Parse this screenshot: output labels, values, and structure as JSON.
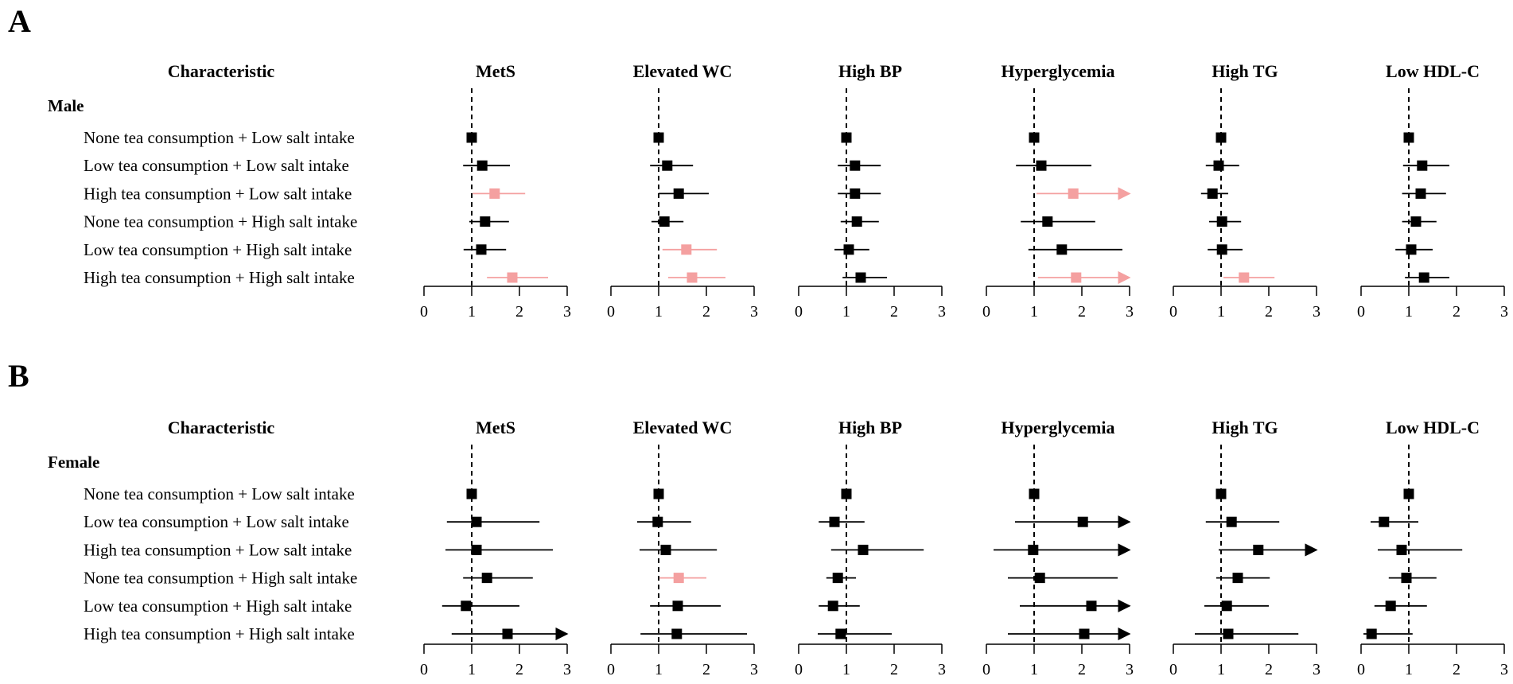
{
  "chart_data": {
    "type": "forest",
    "colors": {
      "significant": "#f4a0a0",
      "default": "#000000"
    },
    "columns": [
      "MetS",
      "Elevated WC",
      "High BP",
      "Hyperglycemia",
      "High TG",
      "Low HDL-C"
    ],
    "characteristic_header": "Characteristic",
    "rows": [
      "None tea consumption + Low salt intake",
      "Low tea consumption + Low salt intake",
      "High tea consumption + Low salt intake",
      "None tea consumption + High salt intake",
      "Low tea consumption + High salt intake",
      "High tea consumption + High salt intake"
    ],
    "xlim": [
      0,
      3
    ],
    "xticks": [
      0,
      1,
      2,
      3
    ],
    "reference_line": 1,
    "panels": [
      {
        "letter": "A",
        "group": "Male",
        "estimates": [
          [
            [
              1.0,
              1.0,
              1.0,
              0
            ],
            [
              1.0,
              1.0,
              1.0,
              0
            ],
            [
              1.0,
              1.0,
              1.0,
              0
            ],
            [
              1.0,
              1.0,
              1.0,
              0
            ],
            [
              1.0,
              1.0,
              1.0,
              0
            ],
            [
              1.0,
              1.0,
              1.0,
              0
            ]
          ],
          [
            [
              1.22,
              0.82,
              1.8,
              0
            ],
            [
              1.18,
              0.82,
              1.72,
              0
            ],
            [
              1.18,
              0.82,
              1.72,
              0
            ],
            [
              1.15,
              0.62,
              2.2,
              0
            ],
            [
              0.95,
              0.68,
              1.38,
              0
            ],
            [
              1.28,
              0.88,
              1.85,
              0
            ]
          ],
          [
            [
              1.48,
              1.02,
              2.12,
              1
            ],
            [
              1.42,
              1.0,
              2.05,
              0
            ],
            [
              1.18,
              0.82,
              1.72,
              0
            ],
            [
              1.82,
              1.05,
              3.0,
              1
            ],
            [
              0.82,
              0.58,
              1.15,
              0
            ],
            [
              1.25,
              0.86,
              1.78,
              0
            ]
          ],
          [
            [
              1.28,
              0.95,
              1.78,
              0
            ],
            [
              1.12,
              0.85,
              1.52,
              0
            ],
            [
              1.22,
              0.88,
              1.68,
              0
            ],
            [
              1.28,
              0.72,
              2.28,
              0
            ],
            [
              1.02,
              0.75,
              1.42,
              0
            ],
            [
              1.15,
              0.86,
              1.58,
              0
            ]
          ],
          [
            [
              1.2,
              0.83,
              1.72,
              0
            ],
            [
              1.58,
              1.08,
              2.22,
              1
            ],
            [
              1.05,
              0.75,
              1.48,
              0
            ],
            [
              1.58,
              0.88,
              2.85,
              0
            ],
            [
              1.02,
              0.72,
              1.45,
              0
            ],
            [
              1.05,
              0.72,
              1.5,
              0
            ]
          ],
          [
            [
              1.85,
              1.32,
              2.6,
              1
            ],
            [
              1.7,
              1.2,
              2.4,
              1
            ],
            [
              1.3,
              0.92,
              1.85,
              0
            ],
            [
              1.88,
              1.08,
              3.0,
              1
            ],
            [
              1.48,
              1.05,
              2.12,
              1
            ],
            [
              1.32,
              0.92,
              1.85,
              0
            ]
          ]
        ]
      },
      {
        "letter": "B",
        "group": "Female",
        "estimates": [
          [
            [
              1.0,
              1.0,
              1.0,
              0
            ],
            [
              1.0,
              1.0,
              1.0,
              0
            ],
            [
              1.0,
              1.0,
              1.0,
              0
            ],
            [
              1.0,
              1.0,
              1.0,
              0
            ],
            [
              1.0,
              1.0,
              1.0,
              0
            ],
            [
              1.0,
              1.0,
              1.0,
              0
            ]
          ],
          [
            [
              1.1,
              0.48,
              2.42,
              0
            ],
            [
              0.98,
              0.55,
              1.68,
              0
            ],
            [
              0.75,
              0.42,
              1.38,
              0
            ],
            [
              2.02,
              0.6,
              3.0,
              0
            ],
            [
              1.22,
              0.68,
              2.22,
              0
            ],
            [
              0.48,
              0.2,
              1.2,
              0
            ]
          ],
          [
            [
              1.1,
              0.45,
              2.7,
              0
            ],
            [
              1.15,
              0.6,
              2.22,
              0
            ],
            [
              1.35,
              0.68,
              2.62,
              0
            ],
            [
              0.98,
              0.15,
              3.0,
              0
            ],
            [
              1.78,
              0.95,
              3.0,
              0
            ],
            [
              0.85,
              0.35,
              2.12,
              0
            ]
          ],
          [
            [
              1.32,
              0.82,
              2.28,
              0
            ],
            [
              1.42,
              1.02,
              2.0,
              1
            ],
            [
              0.82,
              0.58,
              1.2,
              0
            ],
            [
              1.12,
              0.45,
              2.75,
              0
            ],
            [
              1.35,
              0.9,
              2.02,
              0
            ],
            [
              0.95,
              0.58,
              1.58,
              0
            ]
          ],
          [
            [
              0.88,
              0.38,
              2.0,
              0
            ],
            [
              1.4,
              0.82,
              2.3,
              0
            ],
            [
              0.72,
              0.42,
              1.28,
              0
            ],
            [
              2.2,
              0.7,
              3.0,
              0
            ],
            [
              1.12,
              0.65,
              2.0,
              0
            ],
            [
              0.62,
              0.28,
              1.38,
              0
            ]
          ],
          [
            [
              1.75,
              0.58,
              3.0,
              0
            ],
            [
              1.38,
              0.62,
              2.85,
              0
            ],
            [
              0.88,
              0.4,
              1.95,
              0
            ],
            [
              2.05,
              0.45,
              3.0,
              0
            ],
            [
              1.15,
              0.45,
              2.62,
              0
            ],
            [
              0.22,
              0.05,
              1.08,
              0
            ]
          ]
        ]
      }
    ]
  }
}
